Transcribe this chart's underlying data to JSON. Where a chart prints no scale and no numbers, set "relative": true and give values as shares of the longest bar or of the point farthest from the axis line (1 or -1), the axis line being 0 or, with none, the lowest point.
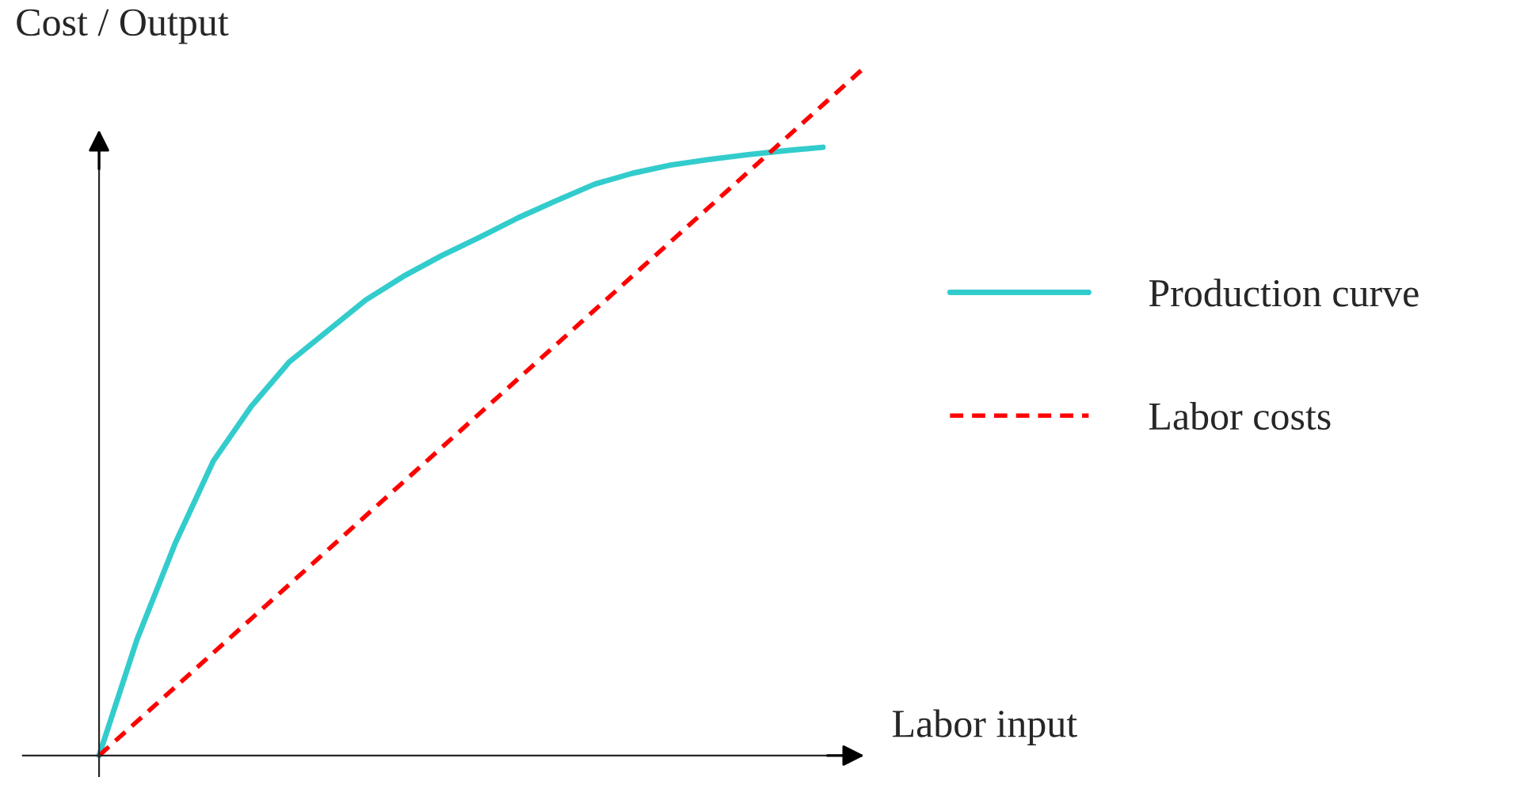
{
  "chart_data": {
    "type": "line",
    "relative": true,
    "xlabel": "Labor input",
    "ylabel": "Cost / Output",
    "legend": "right",
    "categories": [
      null,
      null,
      null,
      null,
      null,
      null,
      null,
      null,
      null,
      null,
      null,
      null,
      null,
      null,
      null,
      null,
      null,
      null,
      null,
      null,
      null
    ],
    "series": [
      {
        "name": "Production curve",
        "color": "#33cccc",
        "line_style": "solid",
        "values": [
          0,
          0.17,
          0.31,
          0.43,
          0.51,
          0.575,
          0.62,
          0.665,
          0.7,
          0.73,
          0.757,
          0.785,
          0.81,
          0.834,
          0.85,
          0.862,
          0.87,
          0.877,
          0.883,
          0.888,
          null
        ]
      },
      {
        "name": "Labor costs",
        "color": "#ff0000",
        "line_style": "dashed",
        "values": [
          0,
          0.05,
          0.1,
          0.15,
          0.2,
          0.25,
          0.3,
          0.35,
          0.4,
          0.45,
          0.5,
          0.55,
          0.6,
          0.65,
          0.7,
          0.75,
          0.8,
          0.85,
          0.9,
          0.95,
          1
        ]
      }
    ]
  }
}
